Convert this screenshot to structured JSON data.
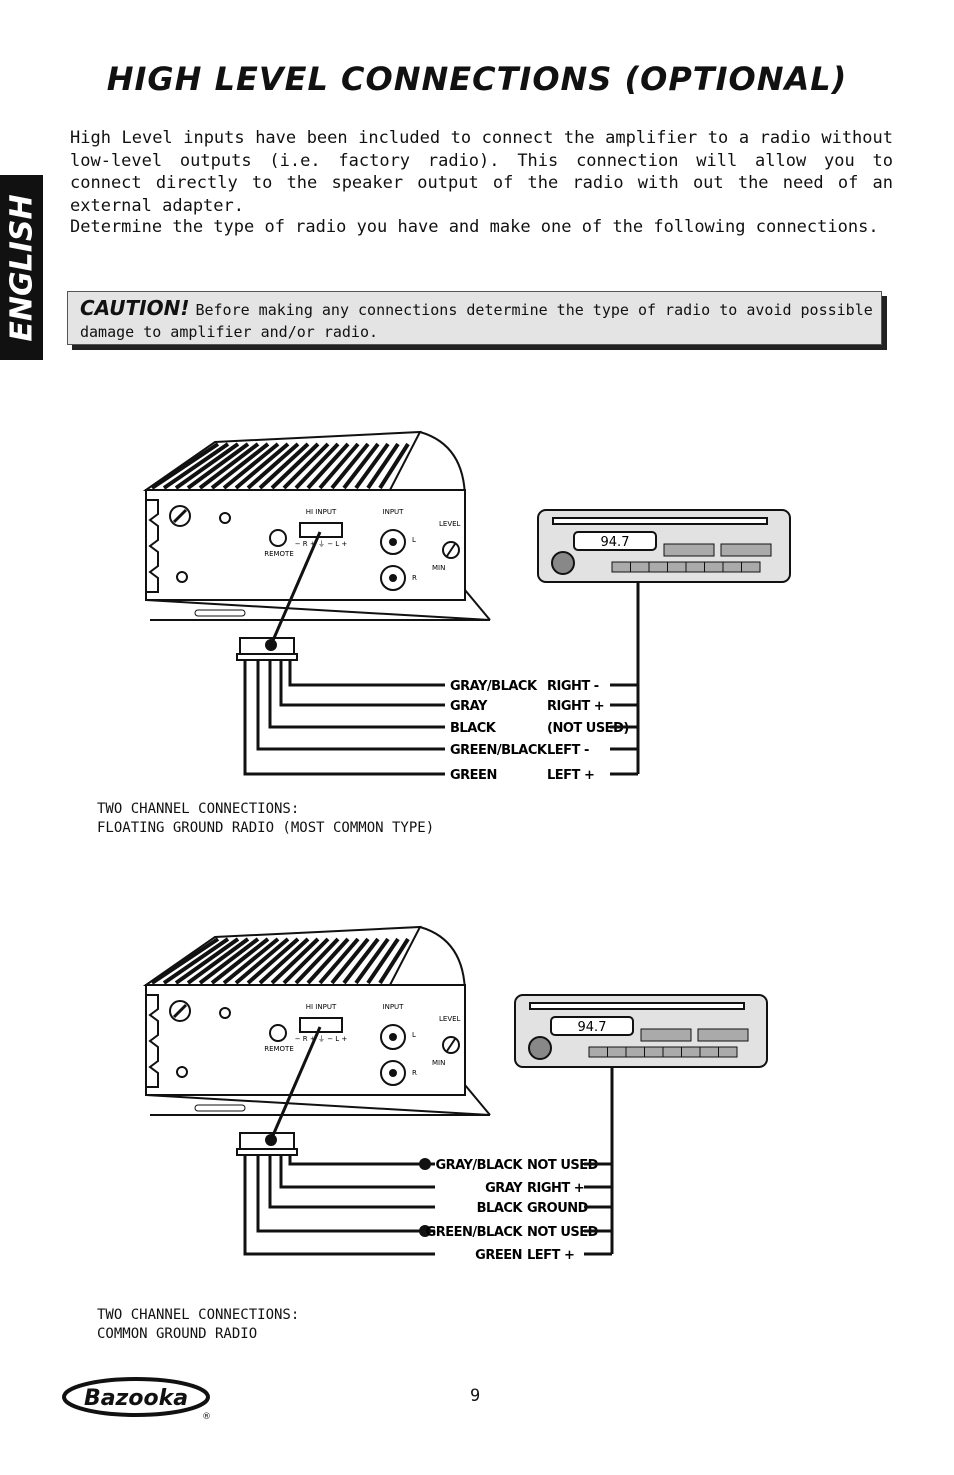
{
  "sidebar": {
    "label": "ENGLISH"
  },
  "header": {
    "title": "HIGH LEVEL CONNECTIONS (OPTIONAL)"
  },
  "body": {
    "paragraphs": [
      "High Level inputs have been included to connect the amplifier to a radio without low-level outputs (i.e. factory radio).  This connection will allow you to connect directly to the speaker output of the radio with out the need of an external adapter.",
      "Determine the type of radio you have and make one of the following connections."
    ]
  },
  "caution": {
    "label": "CAUTION!",
    "text": "Before making any connections determine the type of radio to avoid possible damage to amplifier and/or radio."
  },
  "diagrams": [
    {
      "amp": {
        "hi_input": "HI INPUT",
        "terminals": "− R + ⏚ − L +",
        "input": "INPUT",
        "level": "LEVEL",
        "min": "MIN",
        "remote": "REMOTE",
        "left": "L",
        "right": "R"
      },
      "radio": {
        "display": "94.7"
      },
      "wires": [
        {
          "color": "GRAY/BLACK",
          "connection": "RIGHT -"
        },
        {
          "color": "GRAY",
          "connection": "RIGHT +"
        },
        {
          "color": "BLACK",
          "connection": "(NOT USED)"
        },
        {
          "color": "GREEN/BLACK",
          "connection": "LEFT -"
        },
        {
          "color": "GREEN",
          "connection": "LEFT +"
        }
      ],
      "caption": [
        "TWO CHANNEL CONNECTIONS:",
        "FLOATING GROUND RADIO (MOST COMMON TYPE)"
      ]
    },
    {
      "amp": {
        "hi_input": "HI INPUT",
        "terminals": "− R + ⏚ − L +",
        "input": "INPUT",
        "level": "LEVEL",
        "min": "MIN",
        "remote": "REMOTE",
        "left": "L",
        "right": "R"
      },
      "radio": {
        "display": "94.7"
      },
      "wires": [
        {
          "color": "GRAY/BLACK",
          "connection": "NOT USED"
        },
        {
          "color": "GRAY",
          "connection": "RIGHT +"
        },
        {
          "color": "BLACK",
          "connection": "GROUND"
        },
        {
          "color": "GREEN/BLACK",
          "connection": "NOT USED"
        },
        {
          "color": "GREEN",
          "connection": "LEFT +"
        }
      ],
      "caption": [
        "TWO CHANNEL CONNECTIONS:",
        "COMMON GROUND RADIO"
      ]
    }
  ],
  "footer": {
    "logo": "Bazooka",
    "logo_mark": "®",
    "page": "9"
  }
}
